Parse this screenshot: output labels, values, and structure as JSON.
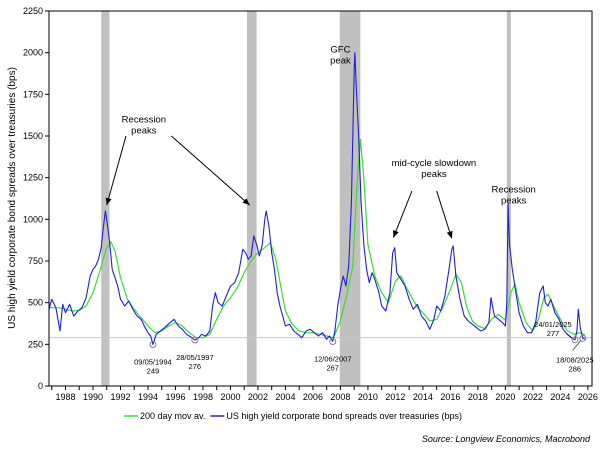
{
  "chart_data": {
    "type": "line",
    "ylabel": "US high yield corporate bond spreads over treasuries (bps)",
    "ylim": [
      0,
      2250
    ],
    "yticks": [
      0,
      250,
      500,
      750,
      1000,
      1250,
      1500,
      1750,
      2000,
      2250
    ],
    "xlim": [
      1986.8,
      2026.3
    ],
    "xticks": [
      "1988",
      "1990",
      "1992",
      "1994",
      "1996",
      "1998",
      "2000",
      "2002",
      "2004",
      "2006",
      "2008",
      "2010",
      "2012",
      "2014",
      "2016",
      "2018",
      "2020",
      "2022",
      "2024",
      "2026"
    ],
    "reference_line": 290,
    "recessions": [
      [
        1990.6,
        1991.2
      ],
      [
        2001.2,
        2001.9
      ],
      [
        2007.95,
        2009.45
      ],
      [
        2020.1,
        2020.4
      ]
    ],
    "series": [
      {
        "name": "US high yield corporate bond spreads over treasuries (bps)",
        "color": "#1f1fd6",
        "points": [
          [
            1986.8,
            460
          ],
          [
            1987.0,
            520
          ],
          [
            1987.3,
            470
          ],
          [
            1987.6,
            330
          ],
          [
            1987.8,
            490
          ],
          [
            1988.0,
            440
          ],
          [
            1988.3,
            490
          ],
          [
            1988.6,
            420
          ],
          [
            1988.9,
            450
          ],
          [
            1989.2,
            470
          ],
          [
            1989.5,
            530
          ],
          [
            1989.8,
            660
          ],
          [
            1990.0,
            700
          ],
          [
            1990.2,
            720
          ],
          [
            1990.4,
            760
          ],
          [
            1990.6,
            830
          ],
          [
            1990.75,
            950
          ],
          [
            1990.9,
            1050
          ],
          [
            1991.0,
            1000
          ],
          [
            1991.2,
            870
          ],
          [
            1991.4,
            700
          ],
          [
            1991.6,
            650
          ],
          [
            1991.8,
            600
          ],
          [
            1992.0,
            520
          ],
          [
            1992.3,
            480
          ],
          [
            1992.6,
            510
          ],
          [
            1992.9,
            460
          ],
          [
            1993.2,
            420
          ],
          [
            1993.5,
            400
          ],
          [
            1993.8,
            350
          ],
          [
            1994.0,
            320
          ],
          [
            1994.2,
            300
          ],
          [
            1994.36,
            249
          ],
          [
            1994.6,
            310
          ],
          [
            1994.9,
            330
          ],
          [
            1995.2,
            350
          ],
          [
            1995.6,
            380
          ],
          [
            1995.9,
            400
          ],
          [
            1996.2,
            360
          ],
          [
            1996.5,
            340
          ],
          [
            1996.8,
            310
          ],
          [
            1997.0,
            300
          ],
          [
            1997.2,
            290
          ],
          [
            1997.41,
            276
          ],
          [
            1997.7,
            290
          ],
          [
            1997.9,
            310
          ],
          [
            1998.2,
            300
          ],
          [
            1998.5,
            330
          ],
          [
            1998.7,
            480
          ],
          [
            1998.9,
            560
          ],
          [
            1999.1,
            500
          ],
          [
            1999.4,
            480
          ],
          [
            1999.7,
            540
          ],
          [
            2000.0,
            600
          ],
          [
            2000.3,
            620
          ],
          [
            2000.6,
            680
          ],
          [
            2000.9,
            820
          ],
          [
            2001.1,
            800
          ],
          [
            2001.3,
            760
          ],
          [
            2001.5,
            780
          ],
          [
            2001.7,
            900
          ],
          [
            2001.9,
            850
          ],
          [
            2002.1,
            780
          ],
          [
            2002.3,
            840
          ],
          [
            2002.5,
            1000
          ],
          [
            2002.6,
            1050
          ],
          [
            2002.8,
            960
          ],
          [
            2003.0,
            800
          ],
          [
            2003.2,
            700
          ],
          [
            2003.4,
            560
          ],
          [
            2003.6,
            480
          ],
          [
            2003.8,
            420
          ],
          [
            2004.0,
            360
          ],
          [
            2004.3,
            370
          ],
          [
            2004.6,
            330
          ],
          [
            2004.9,
            310
          ],
          [
            2005.2,
            290
          ],
          [
            2005.5,
            330
          ],
          [
            2005.8,
            340
          ],
          [
            2006.1,
            320
          ],
          [
            2006.4,
            300
          ],
          [
            2006.7,
            320
          ],
          [
            2007.0,
            280
          ],
          [
            2007.2,
            300
          ],
          [
            2007.44,
            267
          ],
          [
            2007.6,
            330
          ],
          [
            2007.8,
            480
          ],
          [
            2008.0,
            580
          ],
          [
            2008.2,
            660
          ],
          [
            2008.4,
            600
          ],
          [
            2008.6,
            720
          ],
          [
            2008.8,
            1100
          ],
          [
            2008.95,
            1700
          ],
          [
            2009.0,
            1900
          ],
          [
            2009.05,
            2000
          ],
          [
            2009.15,
            1800
          ],
          [
            2009.3,
            1550
          ],
          [
            2009.5,
            1100
          ],
          [
            2009.7,
            850
          ],
          [
            2009.9,
            700
          ],
          [
            2010.1,
            620
          ],
          [
            2010.3,
            680
          ],
          [
            2010.5,
            640
          ],
          [
            2010.8,
            560
          ],
          [
            2011.0,
            480
          ],
          [
            2011.3,
            450
          ],
          [
            2011.6,
            560
          ],
          [
            2011.8,
            800
          ],
          [
            2011.95,
            830
          ],
          [
            2012.1,
            680
          ],
          [
            2012.4,
            640
          ],
          [
            2012.7,
            600
          ],
          [
            2013.0,
            520
          ],
          [
            2013.3,
            460
          ],
          [
            2013.6,
            490
          ],
          [
            2013.9,
            420
          ],
          [
            2014.2,
            390
          ],
          [
            2014.5,
            340
          ],
          [
            2014.8,
            400
          ],
          [
            2015.0,
            480
          ],
          [
            2015.3,
            450
          ],
          [
            2015.6,
            540
          ],
          [
            2015.9,
            700
          ],
          [
            2016.1,
            820
          ],
          [
            2016.2,
            840
          ],
          [
            2016.4,
            660
          ],
          [
            2016.7,
            520
          ],
          [
            2017.0,
            420
          ],
          [
            2017.3,
            390
          ],
          [
            2017.6,
            370
          ],
          [
            2017.9,
            350
          ],
          [
            2018.2,
            330
          ],
          [
            2018.5,
            340
          ],
          [
            2018.8,
            380
          ],
          [
            2018.95,
            530
          ],
          [
            2019.2,
            420
          ],
          [
            2019.5,
            400
          ],
          [
            2019.8,
            380
          ],
          [
            2020.0,
            360
          ],
          [
            2020.1,
            500
          ],
          [
            2020.2,
            1090
          ],
          [
            2020.3,
            850
          ],
          [
            2020.5,
            700
          ],
          [
            2020.8,
            540
          ],
          [
            2021.0,
            440
          ],
          [
            2021.3,
            360
          ],
          [
            2021.6,
            320
          ],
          [
            2021.9,
            320
          ],
          [
            2022.2,
            380
          ],
          [
            2022.5,
            560
          ],
          [
            2022.75,
            600
          ],
          [
            2022.9,
            500
          ],
          [
            2023.1,
            480
          ],
          [
            2023.3,
            520
          ],
          [
            2023.6,
            440
          ],
          [
            2023.9,
            400
          ],
          [
            2024.2,
            340
          ],
          [
            2024.5,
            310
          ],
          [
            2024.8,
            290
          ],
          [
            2025.06,
            277
          ],
          [
            2025.2,
            330
          ],
          [
            2025.3,
            460
          ],
          [
            2025.45,
            350
          ],
          [
            2025.63,
            286
          ],
          [
            2025.8,
            280
          ]
        ]
      },
      {
        "name": "200 day mov av.",
        "color": "#3adb3a",
        "points": [
          [
            1986.8,
            470
          ],
          [
            1987.5,
            470
          ],
          [
            1988.0,
            460
          ],
          [
            1988.5,
            450
          ],
          [
            1989.0,
            455
          ],
          [
            1989.5,
            480
          ],
          [
            1990.0,
            560
          ],
          [
            1990.5,
            690
          ],
          [
            1991.0,
            830
          ],
          [
            1991.3,
            865
          ],
          [
            1991.6,
            810
          ],
          [
            1992.0,
            650
          ],
          [
            1992.5,
            520
          ],
          [
            1993.0,
            460
          ],
          [
            1993.5,
            410
          ],
          [
            1994.0,
            360
          ],
          [
            1994.5,
            320
          ],
          [
            1995.0,
            330
          ],
          [
            1995.5,
            360
          ],
          [
            1996.0,
            380
          ],
          [
            1996.5,
            360
          ],
          [
            1997.0,
            320
          ],
          [
            1997.5,
            290
          ],
          [
            1998.0,
            290
          ],
          [
            1998.5,
            310
          ],
          [
            1999.0,
            400
          ],
          [
            1999.5,
            480
          ],
          [
            2000.0,
            530
          ],
          [
            2000.5,
            590
          ],
          [
            2001.0,
            680
          ],
          [
            2001.5,
            750
          ],
          [
            2002.0,
            800
          ],
          [
            2002.5,
            830
          ],
          [
            2002.9,
            860
          ],
          [
            2003.3,
            760
          ],
          [
            2003.7,
            580
          ],
          [
            2004.0,
            450
          ],
          [
            2004.5,
            370
          ],
          [
            2005.0,
            330
          ],
          [
            2005.5,
            320
          ],
          [
            2006.0,
            320
          ],
          [
            2006.5,
            310
          ],
          [
            2007.0,
            300
          ],
          [
            2007.5,
            290
          ],
          [
            2008.0,
            390
          ],
          [
            2008.5,
            560
          ],
          [
            2008.9,
            720
          ],
          [
            2009.2,
            1200
          ],
          [
            2009.45,
            1480
          ],
          [
            2009.7,
            1250
          ],
          [
            2010.0,
            850
          ],
          [
            2010.5,
            660
          ],
          [
            2011.0,
            560
          ],
          [
            2011.5,
            500
          ],
          [
            2012.0,
            630
          ],
          [
            2012.4,
            660
          ],
          [
            2012.8,
            590
          ],
          [
            2013.2,
            530
          ],
          [
            2013.6,
            470
          ],
          [
            2014.0,
            440
          ],
          [
            2014.5,
            390
          ],
          [
            2015.0,
            400
          ],
          [
            2015.5,
            480
          ],
          [
            2016.0,
            580
          ],
          [
            2016.4,
            670
          ],
          [
            2016.8,
            620
          ],
          [
            2017.2,
            470
          ],
          [
            2017.6,
            390
          ],
          [
            2018.0,
            360
          ],
          [
            2018.5,
            345
          ],
          [
            2019.0,
            400
          ],
          [
            2019.5,
            430
          ],
          [
            2020.0,
            395
          ],
          [
            2020.4,
            560
          ],
          [
            2020.7,
            610
          ],
          [
            2021.0,
            500
          ],
          [
            2021.5,
            380
          ],
          [
            2022.0,
            330
          ],
          [
            2022.4,
            400
          ],
          [
            2022.8,
            530
          ],
          [
            2023.1,
            550
          ],
          [
            2023.5,
            480
          ],
          [
            2024.0,
            400
          ],
          [
            2024.5,
            330
          ],
          [
            2025.0,
            310
          ],
          [
            2025.4,
            320
          ],
          [
            2025.8,
            305
          ]
        ]
      }
    ],
    "annotations": [
      {
        "lines": [
          "Recession",
          "peaks"
        ],
        "at": [
          1993.7,
          1580
        ]
      },
      {
        "lines": [
          "GFC",
          "peak"
        ],
        "at": [
          2008.0,
          2000
        ]
      },
      {
        "lines": [
          "mid-cycle slowdown",
          "peaks"
        ],
        "at": [
          2014.8,
          1320
        ]
      },
      {
        "lines": [
          "Recession",
          "peaks"
        ],
        "at": [
          2020.6,
          1160
        ]
      }
    ],
    "arrows": [
      {
        "from": [
          1992.4,
          1500
        ],
        "to": [
          1991.0,
          1085
        ]
      },
      {
        "from": [
          1995.7,
          1500
        ],
        "to": [
          2001.4,
          1085
        ]
      },
      {
        "from": [
          2013.2,
          1170
        ],
        "to": [
          2011.85,
          890
        ]
      },
      {
        "from": [
          2015.0,
          1170
        ],
        "to": [
          2016.1,
          885
        ]
      }
    ],
    "point_labels": [
      {
        "date": "09/05/1994",
        "value": "249",
        "x": 1994.36,
        "y": 249
      },
      {
        "date": "28/05/1997",
        "value": "276",
        "x": 1997.41,
        "y": 276
      },
      {
        "date": "12/06/2007",
        "value": "267",
        "x": 2007.44,
        "y": 267
      },
      {
        "date": "24/01/2025",
        "value": "277",
        "x": 2025.06,
        "y": 277
      },
      {
        "date": "18/08/2025",
        "value": "286",
        "x": 2025.63,
        "y": 286
      }
    ],
    "legend": {
      "items": [
        "200 day mov av.",
        "US high yield corporate bond spreads over treasuries (bps)"
      ],
      "colors": [
        "#3adb3a",
        "#1f1fd6"
      ],
      "placement": "bottom"
    },
    "source": "Source: Longview Economics, Macrobond",
    "colors": {
      "recession": "#c0c0c0",
      "reference_line": "#a9cfe0",
      "marker": "#808080"
    }
  }
}
